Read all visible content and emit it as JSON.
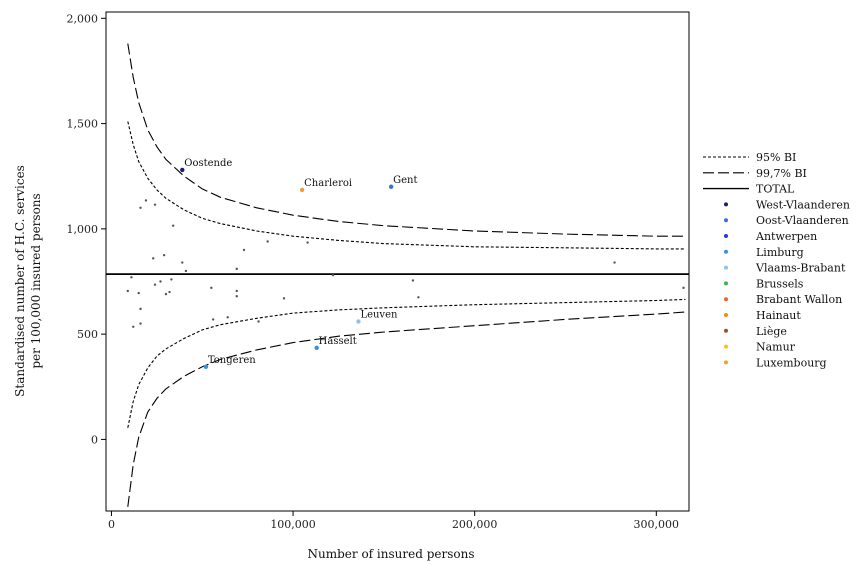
{
  "chart_data": {
    "type": "scatter",
    "title": "",
    "xlabel": "Number of insured persons",
    "ylabel_lines": [
      "Standardised number of H.C. services",
      "per 100,000 insured persons"
    ],
    "xlim": [
      -3000,
      318000
    ],
    "ylim": [
      -340,
      2030
    ],
    "x_ticks": [
      0,
      100000,
      200000,
      300000
    ],
    "x_tick_labels": [
      "0",
      "100,000",
      "200,000",
      "300,000"
    ],
    "y_ticks": [
      0,
      500,
      1000,
      1500,
      2000
    ],
    "y_tick_labels": [
      "0",
      "500",
      "1,000",
      "1,500",
      "2,000"
    ],
    "grid": false,
    "total_rate": 785,
    "bands": {
      "ci95_label": "95% BI",
      "ci997_label": "99,7% BI",
      "total_label": "TOTAL",
      "x": [
        9000,
        12000,
        15000,
        20000,
        25000,
        30000,
        40000,
        50000,
        60000,
        80000,
        100000,
        125000,
        150000,
        200000,
        250000,
        300000,
        316000
      ],
      "ci95_upper": [
        1510,
        1400,
        1320,
        1240,
        1185,
        1145,
        1090,
        1050,
        1025,
        990,
        965,
        945,
        930,
        915,
        910,
        905,
        905
      ],
      "ci95_lower": [
        55,
        180,
        260,
        340,
        395,
        430,
        480,
        520,
        545,
        575,
        600,
        615,
        625,
        640,
        650,
        660,
        665
      ],
      "ci997_upper": [
        1880,
        1720,
        1600,
        1470,
        1390,
        1330,
        1250,
        1190,
        1150,
        1100,
        1065,
        1035,
        1015,
        990,
        975,
        965,
        965
      ],
      "ci997_lower": [
        -320,
        -120,
        10,
        130,
        195,
        240,
        300,
        345,
        380,
        425,
        460,
        490,
        510,
        540,
        570,
        595,
        605
      ]
    },
    "legend": {
      "placement": "right",
      "items": [
        {
          "name": "West-Vlaanderen",
          "color": "#1a1a80"
        },
        {
          "name": "Oost-Vlaanderen",
          "color": "#3a6fd8"
        },
        {
          "name": "Antwerpen",
          "color": "#1f3fcf"
        },
        {
          "name": "Limburg",
          "color": "#3b8fdc"
        },
        {
          "name": "Vlaams-Brabant",
          "color": "#8fc2ec"
        },
        {
          "name": "Brussels",
          "color": "#3cb44b"
        },
        {
          "name": "Brabant Wallon",
          "color": "#e06a2a"
        },
        {
          "name": "Hainaut",
          "color": "#f08a1c"
        },
        {
          "name": "Liège",
          "color": "#a0522d"
        },
        {
          "name": "Namur",
          "color": "#f5c518"
        },
        {
          "name": "Luxembourg",
          "color": "#f0a030"
        }
      ]
    },
    "labeled_points": [
      {
        "label": "Oostende",
        "x": 39000,
        "y": 1280,
        "color": "#1a1a80"
      },
      {
        "label": "Charleroi",
        "x": 105000,
        "y": 1185,
        "color": "#f0a030"
      },
      {
        "label": "Gent",
        "x": 154000,
        "y": 1200,
        "color": "#3a6fd8"
      },
      {
        "label": "Leuven",
        "x": 136000,
        "y": 560,
        "color": "#8fc2ec"
      },
      {
        "label": "Hasselt",
        "x": 113000,
        "y": 435,
        "color": "#3b8fdc"
      },
      {
        "label": "Tongeren",
        "x": 52000,
        "y": 345,
        "color": "#3b8fdc"
      }
    ],
    "other_points": [
      {
        "x": 16000,
        "y": 1100
      },
      {
        "x": 19000,
        "y": 1135
      },
      {
        "x": 24000,
        "y": 1115
      },
      {
        "x": 34000,
        "y": 1015
      },
      {
        "x": 23000,
        "y": 860
      },
      {
        "x": 29000,
        "y": 875
      },
      {
        "x": 39000,
        "y": 840
      },
      {
        "x": 41000,
        "y": 800
      },
      {
        "x": 73000,
        "y": 900
      },
      {
        "x": 86000,
        "y": 940
      },
      {
        "x": 108000,
        "y": 935
      },
      {
        "x": 69000,
        "y": 810
      },
      {
        "x": 11000,
        "y": 770
      },
      {
        "x": 24000,
        "y": 735
      },
      {
        "x": 27000,
        "y": 750
      },
      {
        "x": 33000,
        "y": 760
      },
      {
        "x": 9000,
        "y": 705
      },
      {
        "x": 15000,
        "y": 695
      },
      {
        "x": 30000,
        "y": 690
      },
      {
        "x": 32000,
        "y": 700
      },
      {
        "x": 55000,
        "y": 720
      },
      {
        "x": 69000,
        "y": 705
      },
      {
        "x": 69000,
        "y": 680
      },
      {
        "x": 95000,
        "y": 670
      },
      {
        "x": 16000,
        "y": 620
      },
      {
        "x": 12000,
        "y": 535
      },
      {
        "x": 16000,
        "y": 550
      },
      {
        "x": 56000,
        "y": 570
      },
      {
        "x": 64000,
        "y": 580
      },
      {
        "x": 81000,
        "y": 560
      },
      {
        "x": 122000,
        "y": 780
      },
      {
        "x": 166000,
        "y": 755
      },
      {
        "x": 169000,
        "y": 675
      },
      {
        "x": 277000,
        "y": 840
      },
      {
        "x": 315000,
        "y": 720
      }
    ]
  }
}
